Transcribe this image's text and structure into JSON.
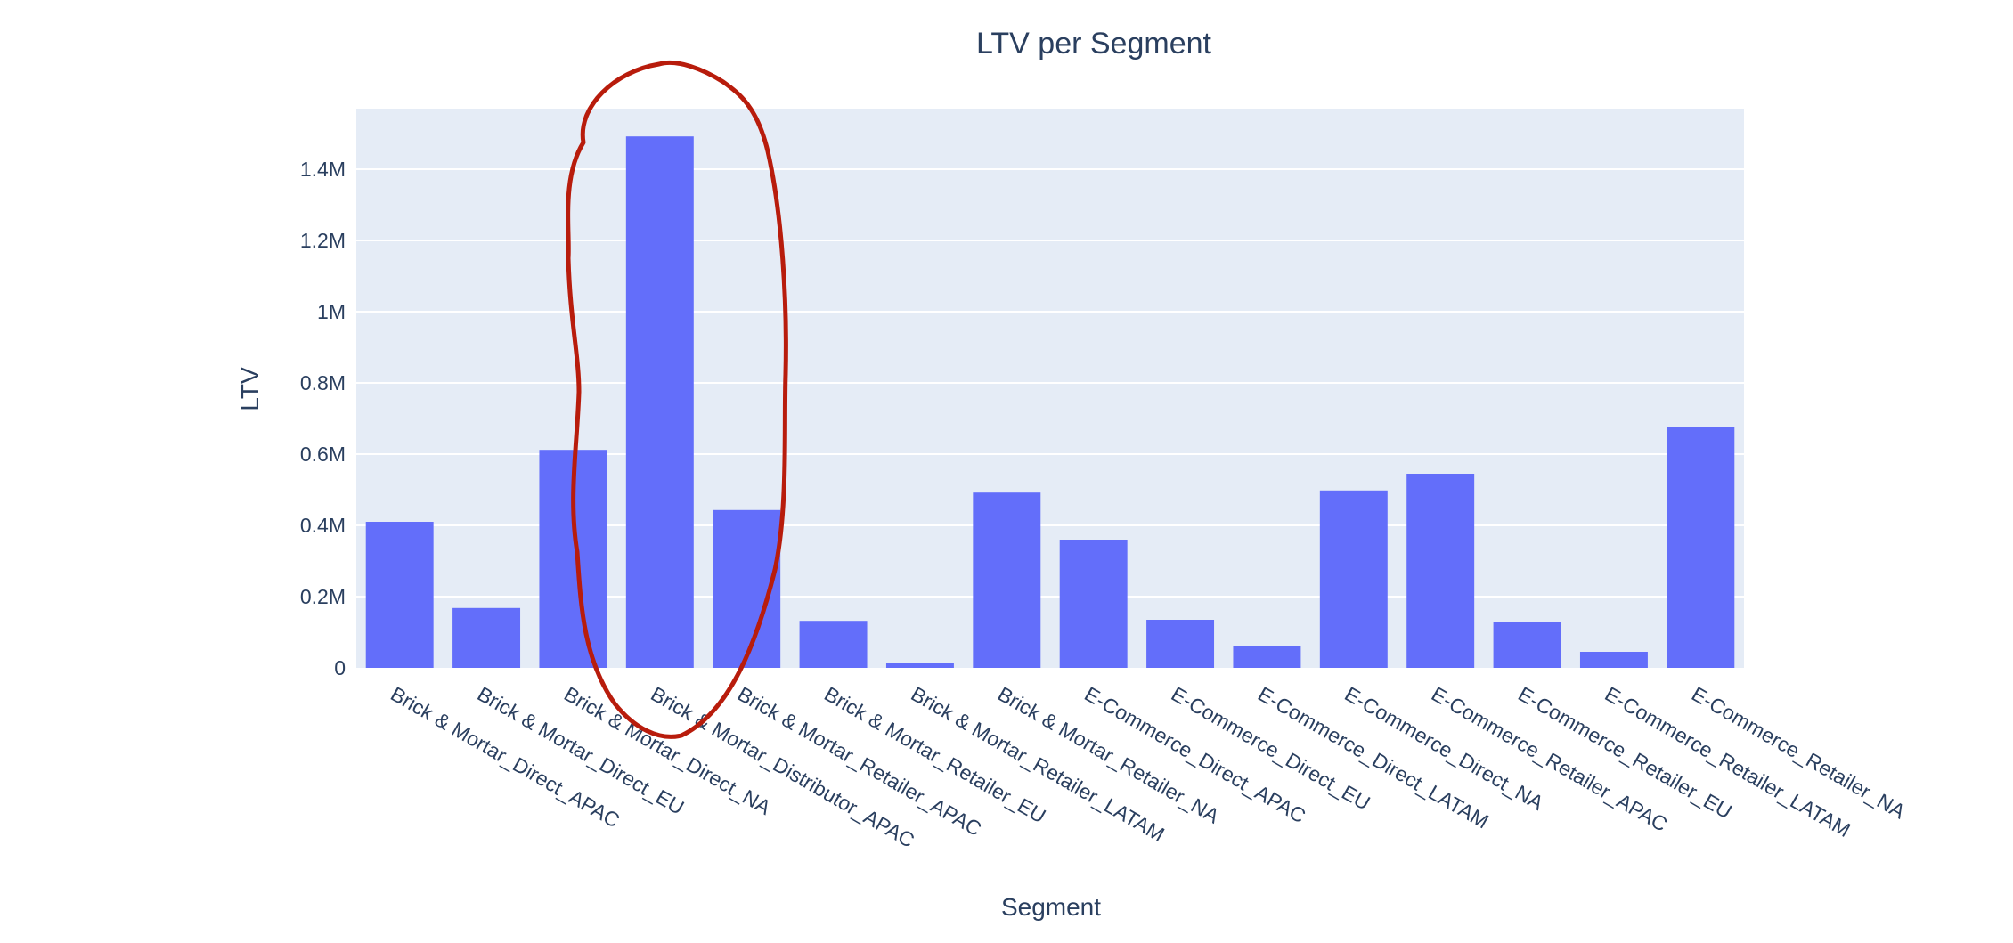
{
  "chart_data": {
    "type": "bar",
    "title": "LTV per Segment",
    "xlabel": "Segment",
    "ylabel": "LTV",
    "categories": [
      "Brick & Mortar_Direct_APAC",
      "Brick & Mortar_Direct_EU",
      "Brick & Mortar_Direct_NA",
      "Brick & Mortar_Distributor_APAC",
      "Brick & Mortar_Retailer_APAC",
      "Brick & Mortar_Retailer_EU",
      "Brick & Mortar_Retailer_LATAM",
      "Brick & Mortar_Retailer_NA",
      "E-Commerce_Direct_APAC",
      "E-Commerce_Direct_EU",
      "E-Commerce_Direct_LATAM",
      "E-Commerce_Direct_NA",
      "E-Commerce_Retailer_APAC",
      "E-Commerce_Retailer_EU",
      "E-Commerce_Retailer_LATAM",
      "E-Commerce_Retailer_NA"
    ],
    "values": [
      410000,
      168000,
      612000,
      1492000,
      443000,
      132000,
      15000,
      492000,
      360000,
      135000,
      62000,
      498000,
      545000,
      130000,
      45000,
      675000
    ],
    "ylim": [
      0,
      1570000
    ],
    "yticks": [
      0,
      200000,
      400000,
      600000,
      800000,
      1000000,
      1200000,
      1400000
    ],
    "ytick_labels": [
      "0",
      "0.2M",
      "0.4M",
      "0.6M",
      "0.8M",
      "1M",
      "1.2M",
      "1.4M"
    ],
    "bar_color": "#636efa",
    "plot_bg": "#e5ecf6",
    "grid": true,
    "annotation": {
      "shape": "hand-drawn ellipse",
      "color": "#b81c0c",
      "highlights": "Brick & Mortar_Distributor_APAC"
    }
  }
}
